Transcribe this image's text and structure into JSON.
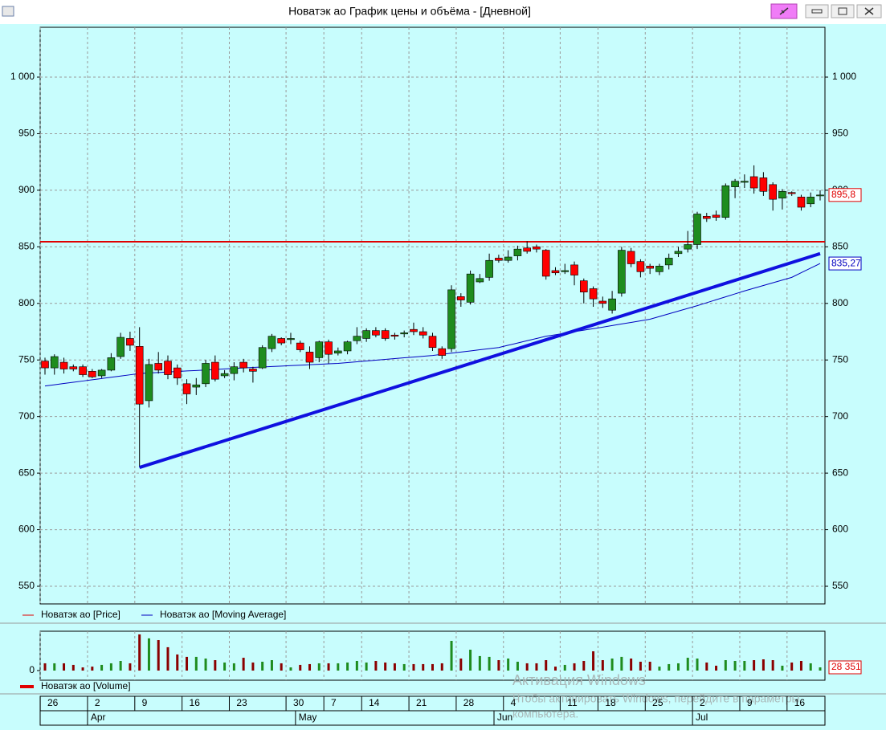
{
  "window": {
    "title": "Новатэк ао График цены и объёма - [Дневной]"
  },
  "watermark": {
    "title": "Активация Windows",
    "text": "Чтобы активировать Windows, перейдите в параметры",
    "text2": "компьютера."
  },
  "chart_data": [
    {
      "type": "candlestick",
      "categories": [
        "26",
        null,
        null,
        null,
        null,
        "2",
        null,
        null,
        null,
        null,
        "9",
        null,
        null,
        null,
        null,
        "16",
        null,
        null,
        null,
        null,
        "23",
        null,
        null,
        null,
        null,
        null,
        "30",
        null,
        null,
        null,
        "7",
        null,
        null,
        null,
        "14",
        null,
        null,
        null,
        null,
        "21",
        null,
        null,
        null,
        null,
        "28",
        null,
        null,
        null,
        null,
        "4",
        null,
        null,
        null,
        null,
        null,
        "11",
        null,
        null,
        null,
        "18",
        null,
        null,
        null,
        null,
        "25",
        null,
        null,
        null,
        null,
        "2",
        null,
        null,
        null,
        null,
        "9",
        null,
        null,
        null,
        null,
        "16",
        null,
        null,
        null
      ],
      "months": [
        null,
        null,
        null,
        null,
        null,
        "Apr",
        null,
        null,
        null,
        null,
        null,
        null,
        null,
        null,
        null,
        null,
        null,
        null,
        null,
        null,
        null,
        null,
        null,
        null,
        null,
        null,
        null,
        "May",
        null,
        null,
        null,
        null,
        null,
        null,
        null,
        null,
        null,
        null,
        null,
        null,
        null,
        null,
        null,
        null,
        null,
        null,
        null,
        null,
        "Jun",
        null,
        null,
        null,
        null,
        null,
        null,
        null,
        null,
        null,
        null,
        null,
        null,
        null,
        null,
        null,
        null,
        null,
        null,
        null,
        null,
        "Jul",
        null,
        null,
        null,
        null,
        null,
        null,
        null,
        null,
        null,
        null,
        null,
        null,
        null
      ],
      "ylim": [
        534.4,
        1044
      ],
      "yticks": [
        550,
        600,
        650,
        700,
        750,
        800,
        850,
        900,
        950,
        {
          "value": 1000,
          "label": "1 000"
        }
      ],
      "grid": true,
      "series": [
        {
          "name": "Новатэк ао [Price]",
          "color": "#e00000",
          "up_color": "#1e8c1e",
          "down_color": "#ff0000",
          "open": [
            749,
            743,
            748,
            744,
            744,
            740,
            736,
            741,
            753,
            769,
            762,
            714,
            747,
            749,
            743,
            729,
            726,
            729,
            748,
            736,
            738,
            748,
            742,
            743,
            760,
            769,
            768,
            765,
            757,
            752,
            766,
            756,
            758,
            767,
            769,
            776,
            776,
            772,
            773,
            777,
            775,
            771,
            760,
            760,
            806,
            801,
            819,
            823,
            840,
            838,
            842,
            849,
            850,
            847,
            829,
            828,
            834,
            820,
            813,
            802,
            794,
            809,
            846,
            837,
            833,
            828,
            834,
            844,
            848,
            852,
            877,
            878,
            876,
            903,
            907,
            912,
            911,
            905,
            893,
            898,
            894,
            888,
            895
          ],
          "high": [
            752,
            755,
            752,
            746,
            746,
            742,
            742,
            756,
            774,
            775,
            779,
            751,
            757,
            754,
            746,
            733,
            734,
            750,
            754,
            741,
            748,
            751,
            744,
            763,
            773,
            770,
            774,
            767,
            762,
            767,
            768,
            761,
            767,
            779,
            778,
            779,
            778,
            774,
            776,
            783,
            779,
            774,
            762,
            816,
            809,
            829,
            826,
            844,
            843,
            847,
            851,
            855,
            852,
            848,
            832,
            835,
            837,
            822,
            815,
            806,
            811,
            850,
            849,
            839,
            835,
            835,
            844,
            850,
            864,
            881,
            880,
            882,
            906,
            910,
            914,
            922,
            916,
            907,
            901,
            899,
            896,
            898,
            900
          ],
          "low": [
            737,
            737,
            738,
            740,
            735,
            734,
            734,
            740,
            751,
            758,
            655,
            708,
            738,
            733,
            728,
            711,
            719,
            726,
            731,
            734,
            732,
            739,
            730,
            742,
            757,
            763,
            764,
            757,
            742,
            748,
            747,
            754,
            755,
            764,
            766,
            770,
            767,
            768,
            770,
            772,
            769,
            758,
            751,
            757,
            797,
            799,
            818,
            820,
            836,
            836,
            838,
            844,
            845,
            821,
            825,
            826,
            816,
            800,
            797,
            796,
            791,
            806,
            832,
            823,
            826,
            825,
            830,
            841,
            845,
            848,
            872,
            873,
            874,
            893,
            902,
            897,
            895,
            882,
            883,
            895,
            882,
            885,
            891
          ],
          "close": [
            743,
            753,
            742,
            742,
            737,
            735,
            741,
            752,
            770,
            763,
            711,
            746,
            741,
            737,
            734,
            720,
            728,
            747,
            733,
            738,
            744,
            743,
            740,
            761,
            771,
            765,
            769,
            759,
            748,
            766,
            755,
            758,
            766,
            771,
            776,
            772,
            769,
            771,
            774,
            775,
            772,
            761,
            754,
            812,
            803,
            826,
            822,
            838,
            838,
            841,
            848,
            846,
            848,
            824,
            827,
            829,
            825,
            810,
            804,
            800,
            804,
            847,
            835,
            828,
            831,
            833,
            840,
            846,
            852,
            879,
            875,
            876,
            904,
            908,
            908,
            902,
            899,
            892,
            899,
            897,
            885,
            894,
            895.8
          ],
          "last_label": {
            "value": 895.8,
            "label": "895,8"
          }
        },
        {
          "name": "Новатэк ао [Moving Average]",
          "color": "#0000c0",
          "values": [
            727,
            728.1,
            729.2,
            730.3,
            731.4,
            732.5,
            733.6,
            734.7,
            735.8,
            736.9,
            738,
            738.5,
            738.9,
            739.4,
            739.8,
            740.3,
            740.7,
            741.2,
            741.6,
            742.1,
            742.5,
            743,
            743.4,
            743.8,
            744.2,
            744.6,
            745,
            745.4,
            745.8,
            746.2,
            746.6,
            747,
            747.7,
            748.4,
            749.1,
            749.8,
            750.5,
            751.2,
            751.9,
            752.6,
            753.3,
            754,
            755,
            756,
            757,
            758,
            759,
            760,
            761,
            763,
            765,
            767,
            769,
            771,
            772.3,
            773.7,
            775,
            776.3,
            777.7,
            779,
            780.4,
            781.8,
            783.2,
            784.6,
            786,
            788.4,
            790.8,
            793.2,
            795.6,
            798,
            800.6,
            803.2,
            805.8,
            808.4,
            811,
            813.4,
            815.8,
            818.2,
            820.6,
            823,
            827.1,
            831.2,
            835.27
          ],
          "last_label": {
            "value": 835.27,
            "label": "835,27"
          }
        }
      ],
      "trend_line": {
        "color": "#1010e0",
        "x": [
          10,
          82
        ],
        "y": [
          655,
          844
        ]
      },
      "hline": {
        "color": "#e00000",
        "value": 854.5
      }
    },
    {
      "type": "bar",
      "ylim": [
        -85000,
        347000
      ],
      "yticks": [
        0
      ],
      "series": [
        {
          "name": "Новатэк ао [Volume]",
          "color": "#e00000",
          "up_color": "#1e8c1e",
          "down_color": "#8b0000",
          "values": [
            64000,
            64000,
            64000,
            50000,
            28000,
            35000,
            50000,
            64000,
            85000,
            64000,
            319000,
            284000,
            269000,
            206000,
            142000,
            121000,
            121000,
            106000,
            92000,
            71000,
            64000,
            113000,
            71000,
            78000,
            92000,
            64000,
            28000,
            50000,
            57000,
            64000,
            64000,
            64000,
            71000,
            85000,
            71000,
            85000,
            71000,
            64000,
            57000,
            57000,
            57000,
            57000,
            64000,
            262000,
            106000,
            184000,
            128000,
            121000,
            92000,
            106000,
            78000,
            64000,
            64000,
            92000,
            35000,
            50000,
            64000,
            85000,
            170000,
            92000,
            106000,
            121000,
            106000,
            78000,
            78000,
            35000,
            57000,
            64000,
            113000,
            106000,
            71000,
            43000,
            92000,
            85000,
            85000,
            92000,
            99000,
            92000,
            43000,
            71000,
            85000,
            64000,
            28351
          ],
          "last_label": {
            "value": 28351,
            "label": "28 351"
          }
        }
      ]
    }
  ]
}
